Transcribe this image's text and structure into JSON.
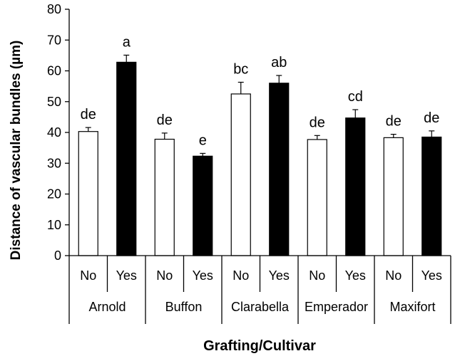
{
  "chart_data": {
    "type": "bar",
    "ylabel": "Distance of vascular bundles  (µm)",
    "xlabel": "Grafting/Cultivar",
    "ylim": [
      0,
      80
    ],
    "yticks": [
      "0",
      "10",
      "20",
      "30",
      "40",
      "50",
      "60",
      "70",
      "80"
    ],
    "groups": [
      "Arnold",
      "Buffon",
      "Clarabella",
      "Emperador",
      "Maxifort"
    ],
    "grafting": [
      "No",
      "Yes"
    ],
    "series": [
      {
        "name": "No",
        "color": "#ffffff",
        "values": [
          40.3,
          37.8,
          52.5,
          37.7,
          38.3
        ],
        "errors": [
          1.3,
          2.0,
          3.8,
          1.3,
          1.1
        ],
        "letters": [
          "de",
          "de",
          "bc",
          "de",
          "de"
        ]
      },
      {
        "name": "Yes",
        "color": "#000000",
        "values": [
          62.8,
          32.3,
          56.0,
          44.7,
          38.5
        ],
        "errors": [
          2.3,
          0.9,
          2.5,
          2.7,
          2.0
        ],
        "letters": [
          "a",
          "e",
          "ab",
          "cd",
          "de"
        ]
      }
    ],
    "grid": false,
    "legend": "none"
  }
}
